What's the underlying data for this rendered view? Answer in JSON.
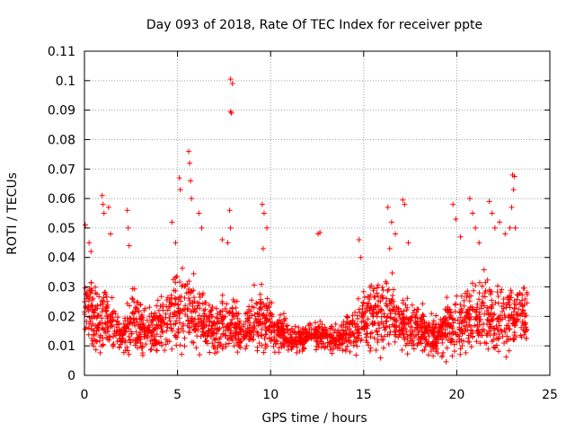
{
  "chart_data": {
    "type": "scatter",
    "title": "Day 093 of 2018, Rate Of TEC Index for receiver ppte",
    "xlabel": "GPS time / hours",
    "ylabel": "ROTI / TECUs",
    "xlim": [
      0,
      25
    ],
    "ylim": [
      0,
      0.11
    ],
    "x_ticks": [
      "0",
      "5",
      "10",
      "15",
      "20",
      "25"
    ],
    "y_ticks": [
      "0",
      "0.01",
      "0.02",
      "0.03",
      "0.04",
      "0.05",
      "0.06",
      "0.07",
      "0.08",
      "0.09",
      "0.1",
      "0.11"
    ],
    "grid": true,
    "marker": "+",
    "series_color": "#ff0000",
    "envelope": {
      "x": [
        0,
        0.3,
        0.6,
        1.0,
        1.5,
        2.0,
        2.5,
        3.0,
        3.5,
        4.0,
        4.5,
        5.0,
        5.5,
        6.0,
        6.5,
        7.0,
        7.5,
        8.0,
        8.5,
        9.0,
        9.5,
        10.0,
        10.5,
        11.0,
        11.5,
        12.0,
        12.5,
        13.0,
        13.5,
        14.0,
        14.5,
        15.0,
        15.5,
        16.0,
        16.5,
        17.0,
        17.5,
        18.0,
        18.5,
        19.0,
        19.5,
        20.0,
        20.5,
        21.0,
        21.5,
        22.0,
        22.5,
        23.0,
        23.5,
        23.8
      ],
      "median": [
        0.025,
        0.022,
        0.017,
        0.02,
        0.018,
        0.012,
        0.018,
        0.016,
        0.015,
        0.016,
        0.02,
        0.022,
        0.024,
        0.02,
        0.017,
        0.015,
        0.018,
        0.017,
        0.014,
        0.018,
        0.02,
        0.016,
        0.015,
        0.013,
        0.012,
        0.013,
        0.014,
        0.013,
        0.012,
        0.014,
        0.016,
        0.018,
        0.02,
        0.022,
        0.022,
        0.018,
        0.016,
        0.016,
        0.014,
        0.014,
        0.016,
        0.017,
        0.018,
        0.02,
        0.021,
        0.02,
        0.02,
        0.021,
        0.02,
        0.019
      ],
      "spread": [
        0.01,
        0.012,
        0.012,
        0.014,
        0.01,
        0.004,
        0.012,
        0.01,
        0.009,
        0.01,
        0.014,
        0.015,
        0.016,
        0.012,
        0.01,
        0.008,
        0.011,
        0.009,
        0.007,
        0.01,
        0.012,
        0.008,
        0.007,
        0.005,
        0.005,
        0.005,
        0.006,
        0.005,
        0.005,
        0.006,
        0.008,
        0.01,
        0.012,
        0.014,
        0.012,
        0.01,
        0.009,
        0.009,
        0.008,
        0.008,
        0.01,
        0.011,
        0.012,
        0.013,
        0.014,
        0.013,
        0.012,
        0.013,
        0.012,
        0.011
      ]
    },
    "peaks": [
      {
        "x": 0.05,
        "y": 0.051
      },
      {
        "x": 0.25,
        "y": 0.045
      },
      {
        "x": 0.35,
        "y": 0.042
      },
      {
        "x": 0.95,
        "y": 0.061
      },
      {
        "x": 1.0,
        "y": 0.058
      },
      {
        "x": 1.05,
        "y": 0.055
      },
      {
        "x": 1.3,
        "y": 0.057
      },
      {
        "x": 1.4,
        "y": 0.048
      },
      {
        "x": 2.3,
        "y": 0.056
      },
      {
        "x": 2.35,
        "y": 0.05
      },
      {
        "x": 2.4,
        "y": 0.044
      },
      {
        "x": 4.7,
        "y": 0.052
      },
      {
        "x": 4.9,
        "y": 0.045
      },
      {
        "x": 5.1,
        "y": 0.067
      },
      {
        "x": 5.15,
        "y": 0.063
      },
      {
        "x": 5.6,
        "y": 0.076
      },
      {
        "x": 5.65,
        "y": 0.072
      },
      {
        "x": 5.7,
        "y": 0.066
      },
      {
        "x": 5.75,
        "y": 0.06
      },
      {
        "x": 6.15,
        "y": 0.055
      },
      {
        "x": 6.3,
        "y": 0.05
      },
      {
        "x": 7.4,
        "y": 0.046
      },
      {
        "x": 7.7,
        "y": 0.045
      },
      {
        "x": 7.85,
        "y": 0.1005
      },
      {
        "x": 7.95,
        "y": 0.099
      },
      {
        "x": 7.85,
        "y": 0.0895
      },
      {
        "x": 7.9,
        "y": 0.089
      },
      {
        "x": 7.8,
        "y": 0.056
      },
      {
        "x": 7.85,
        "y": 0.05
      },
      {
        "x": 9.55,
        "y": 0.058
      },
      {
        "x": 9.65,
        "y": 0.055
      },
      {
        "x": 9.8,
        "y": 0.05
      },
      {
        "x": 9.6,
        "y": 0.043
      },
      {
        "x": 12.55,
        "y": 0.048
      },
      {
        "x": 12.65,
        "y": 0.0485
      },
      {
        "x": 14.75,
        "y": 0.046
      },
      {
        "x": 14.85,
        "y": 0.04
      },
      {
        "x": 16.3,
        "y": 0.057
      },
      {
        "x": 16.5,
        "y": 0.052
      },
      {
        "x": 16.7,
        "y": 0.048
      },
      {
        "x": 16.4,
        "y": 0.043
      },
      {
        "x": 17.1,
        "y": 0.0595
      },
      {
        "x": 17.2,
        "y": 0.058
      },
      {
        "x": 17.4,
        "y": 0.045
      },
      {
        "x": 19.8,
        "y": 0.058
      },
      {
        "x": 19.95,
        "y": 0.053
      },
      {
        "x": 20.2,
        "y": 0.047
      },
      {
        "x": 20.7,
        "y": 0.06
      },
      {
        "x": 20.85,
        "y": 0.055
      },
      {
        "x": 21.0,
        "y": 0.05
      },
      {
        "x": 21.2,
        "y": 0.045
      },
      {
        "x": 21.75,
        "y": 0.059
      },
      {
        "x": 21.9,
        "y": 0.055
      },
      {
        "x": 22.05,
        "y": 0.05
      },
      {
        "x": 22.3,
        "y": 0.052
      },
      {
        "x": 22.6,
        "y": 0.048
      },
      {
        "x": 22.85,
        "y": 0.05
      },
      {
        "x": 23.0,
        "y": 0.068
      },
      {
        "x": 23.1,
        "y": 0.0675
      },
      {
        "x": 23.05,
        "y": 0.063
      },
      {
        "x": 22.95,
        "y": 0.057
      },
      {
        "x": 23.15,
        "y": 0.05
      }
    ]
  }
}
